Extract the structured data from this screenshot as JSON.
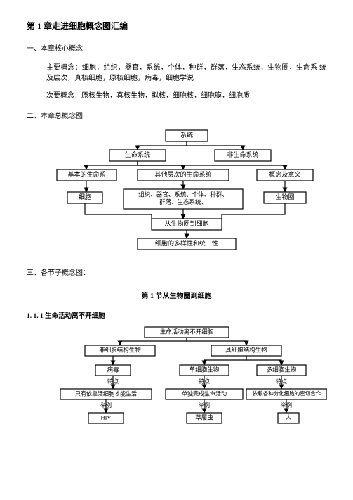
{
  "title": "第 1 章走进细胞概念图汇编",
  "sec1": {
    "heading": "一、本章核心概念",
    "p1": "主要概念：细胞，组织，器官，系统，个体，种群，群落，生态系统，生物圈，生命系 统及层次，真核细胞，原核细胞，病毒，细胞学说",
    "p2": "次要概念：原核生物，真核生物，拟核，细胞核，细胞膜，细胞质"
  },
  "sec2": {
    "heading": "二、本章总概念图",
    "diagram": {
      "nodes": {
        "n1": "系统",
        "n2": "生命系统",
        "n3": "非生命系统",
        "n4": "基本的生命系",
        "n5": "其他层次的生命系统",
        "n6": "概念及意义",
        "n7": "细胞",
        "n8": "组织、器官、系统、个体、种群、\n群落、生态系统、",
        "n9": "生物圈",
        "n10": "从生物圈到细胞",
        "n11": "细胞的多样性和统一性"
      },
      "style": {
        "box_fill": "#ffffff",
        "box_stroke": "#000000",
        "box_stroke_w": 1.2,
        "text_color": "#000000",
        "font_size": 9,
        "arrow_color": "#000000"
      }
    }
  },
  "sec3": {
    "heading": "三、各节子概念图：",
    "sub_title": "第 1 节从生物圈到细胞",
    "sub_label": "1. 1. 1 生命活动离不开细胞",
    "diagram": {
      "nodes": {
        "m1": "生命活动离不开细胞",
        "m2": "非细胞结构生物",
        "m3": "具细胞结构生物",
        "m4": "病毒",
        "m5": "单细胞生物",
        "m6": "多细胞生物",
        "m4b": "特点",
        "m5b": "特点",
        "m6b": "特点",
        "m7": "只有依靠活细胞才能生活",
        "m8": "单独完成生命活动",
        "m9": "依赖各种分化细胞的密切合作",
        "m7b": "举例",
        "m8b": "举例",
        "m9b": "举例",
        "m10": "HIV",
        "m11": "草履虫",
        "m12": "人"
      },
      "style": {
        "box_fill": "#ffffff",
        "box_stroke": "#000000",
        "box_stroke_w": 1.2,
        "text_color": "#000000",
        "font_size": 8.5,
        "arrow_color": "#000000"
      }
    }
  }
}
